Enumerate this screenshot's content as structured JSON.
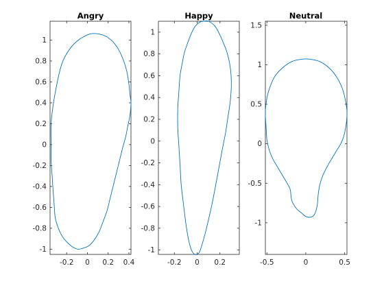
{
  "chart_data": [
    {
      "type": "line",
      "title": "Angry",
      "xlabel": "",
      "ylabel": "",
      "xlim": [
        -0.36,
        0.42
      ],
      "ylim": [
        -1.05,
        1.18
      ],
      "xticks": [
        -0.2,
        0,
        0.2,
        0.4
      ],
      "xtick_labels": [
        "-0.2",
        "0",
        "0.2",
        "0.4"
      ],
      "yticks": [
        -1,
        -0.8,
        -0.6,
        -0.4,
        -0.2,
        0,
        0.2,
        0.4,
        0.6,
        0.8,
        1
      ],
      "ytick_labels": [
        "-1",
        "-0.8",
        "-0.6",
        "-0.4",
        "-0.2",
        "0",
        "0.2",
        "0.4",
        "0.6",
        "0.8",
        "1"
      ],
      "grid": false,
      "color": "#0072BD",
      "series": [
        {
          "x": [
            -0.35,
            -0.33,
            -0.3,
            -0.27,
            -0.24,
            -0.2,
            -0.15,
            -0.1,
            -0.04,
            0.03,
            0.1,
            0.17,
            0.24,
            0.3,
            0.35,
            0.38,
            0.4,
            0.41,
            0.42,
            0.41,
            0.39,
            0.37,
            0.34,
            0.31,
            0.28,
            0.25,
            0.22,
            0.19,
            0.15,
            0.11,
            0.06,
            0.01,
            -0.04,
            -0.09,
            -0.14,
            -0.19,
            -0.24,
            -0.28,
            -0.31,
            -0.32,
            -0.33,
            -0.34,
            -0.35,
            -0.35,
            -0.35
          ],
          "y": [
            0.2,
            0.38,
            0.55,
            0.69,
            0.79,
            0.87,
            0.94,
            0.99,
            1.03,
            1.06,
            1.06,
            1.04,
            0.99,
            0.91,
            0.8,
            0.7,
            0.58,
            0.48,
            0.4,
            0.28,
            0.18,
            0.08,
            -0.03,
            -0.15,
            -0.27,
            -0.39,
            -0.51,
            -0.63,
            -0.74,
            -0.84,
            -0.92,
            -0.97,
            -0.99,
            -1.0,
            -0.98,
            -0.94,
            -0.88,
            -0.8,
            -0.7,
            -0.58,
            -0.45,
            -0.3,
            -0.15,
            0.0,
            0.2
          ]
        }
      ]
    },
    {
      "type": "line",
      "title": "Happy",
      "xlabel": "",
      "ylabel": "",
      "xlim": [
        -0.34,
        0.37
      ],
      "ylim": [
        -1.04,
        1.1
      ],
      "xticks": [
        -0.2,
        0,
        0.2
      ],
      "xtick_labels": [
        "-0.2",
        "0",
        "0.2"
      ],
      "yticks": [
        -1,
        -0.8,
        -0.6,
        -0.4,
        -0.2,
        0,
        0.2,
        0.4,
        0.6,
        0.8,
        1
      ],
      "ytick_labels": [
        "-1",
        "-0.8",
        "-0.6",
        "-0.4",
        "-0.2",
        "0",
        "0.2",
        "0.4",
        "0.6",
        "0.8",
        "1"
      ],
      "grid": false,
      "color": "#0072BD",
      "series": [
        {
          "x": [
            0.1,
            0.16,
            0.21,
            0.26,
            0.29,
            0.3,
            0.29,
            0.27,
            0.25,
            0.22,
            0.19,
            0.16,
            0.13,
            0.1,
            0.07,
            0.04,
            0.02,
            0.0,
            -0.02,
            -0.04,
            -0.06,
            -0.08,
            -0.1,
            -0.12,
            -0.14,
            -0.15,
            -0.16,
            -0.17,
            -0.17,
            -0.16,
            -0.15,
            -0.13,
            -0.11,
            -0.08,
            -0.05,
            -0.02,
            0.02,
            0.06,
            0.1
          ],
          "y": [
            1.1,
            1.05,
            0.95,
            0.82,
            0.68,
            0.52,
            0.36,
            0.22,
            0.08,
            -0.08,
            -0.25,
            -0.42,
            -0.58,
            -0.72,
            -0.85,
            -0.96,
            -1.02,
            -1.04,
            -1.04,
            -1.02,
            -0.97,
            -0.88,
            -0.75,
            -0.58,
            -0.4,
            -0.22,
            -0.05,
            0.12,
            0.3,
            0.46,
            0.6,
            0.72,
            0.82,
            0.91,
            0.99,
            1.05,
            1.09,
            1.1,
            1.1
          ]
        }
      ]
    },
    {
      "type": "line",
      "title": "Neutral",
      "xlabel": "",
      "ylabel": "",
      "xlim": [
        -0.52,
        0.53
      ],
      "ylim": [
        -1.4,
        1.55
      ],
      "xticks": [
        -0.5,
        0,
        0.5
      ],
      "xtick_labels": [
        "-0.5",
        "0",
        "0.5"
      ],
      "yticks": [
        -1,
        -0.5,
        0,
        0.5,
        1,
        1.5
      ],
      "ytick_labels": [
        "-1",
        "-0.5",
        "0",
        "0.5",
        "1",
        "1.5"
      ],
      "grid": false,
      "color": "#0072BD",
      "series": [
        {
          "x": [
            0.05,
            0.18,
            0.3,
            0.4,
            0.47,
            0.51,
            0.53,
            0.52,
            0.49,
            0.45,
            0.4,
            0.34,
            0.28,
            0.22,
            0.18,
            0.16,
            0.15,
            0.13,
            0.1,
            0.05,
            0.0,
            -0.05,
            -0.12,
            -0.18,
            -0.2,
            -0.24,
            -0.3,
            -0.36,
            -0.42,
            -0.47,
            -0.5,
            -0.51,
            -0.52,
            -0.5,
            -0.46,
            -0.4,
            -0.3,
            -0.18,
            -0.05,
            0.05
          ],
          "y": [
            1.07,
            1.04,
            0.96,
            0.84,
            0.7,
            0.55,
            0.4,
            0.25,
            0.1,
            0.0,
            -0.08,
            -0.18,
            -0.28,
            -0.4,
            -0.52,
            -0.64,
            -0.76,
            -0.85,
            -0.91,
            -0.93,
            -0.92,
            -0.88,
            -0.82,
            -0.72,
            -0.58,
            -0.5,
            -0.4,
            -0.3,
            -0.2,
            -0.08,
            0.05,
            0.2,
            0.4,
            0.58,
            0.72,
            0.85,
            0.96,
            1.04,
            1.07,
            1.07
          ]
        }
      ]
    }
  ]
}
